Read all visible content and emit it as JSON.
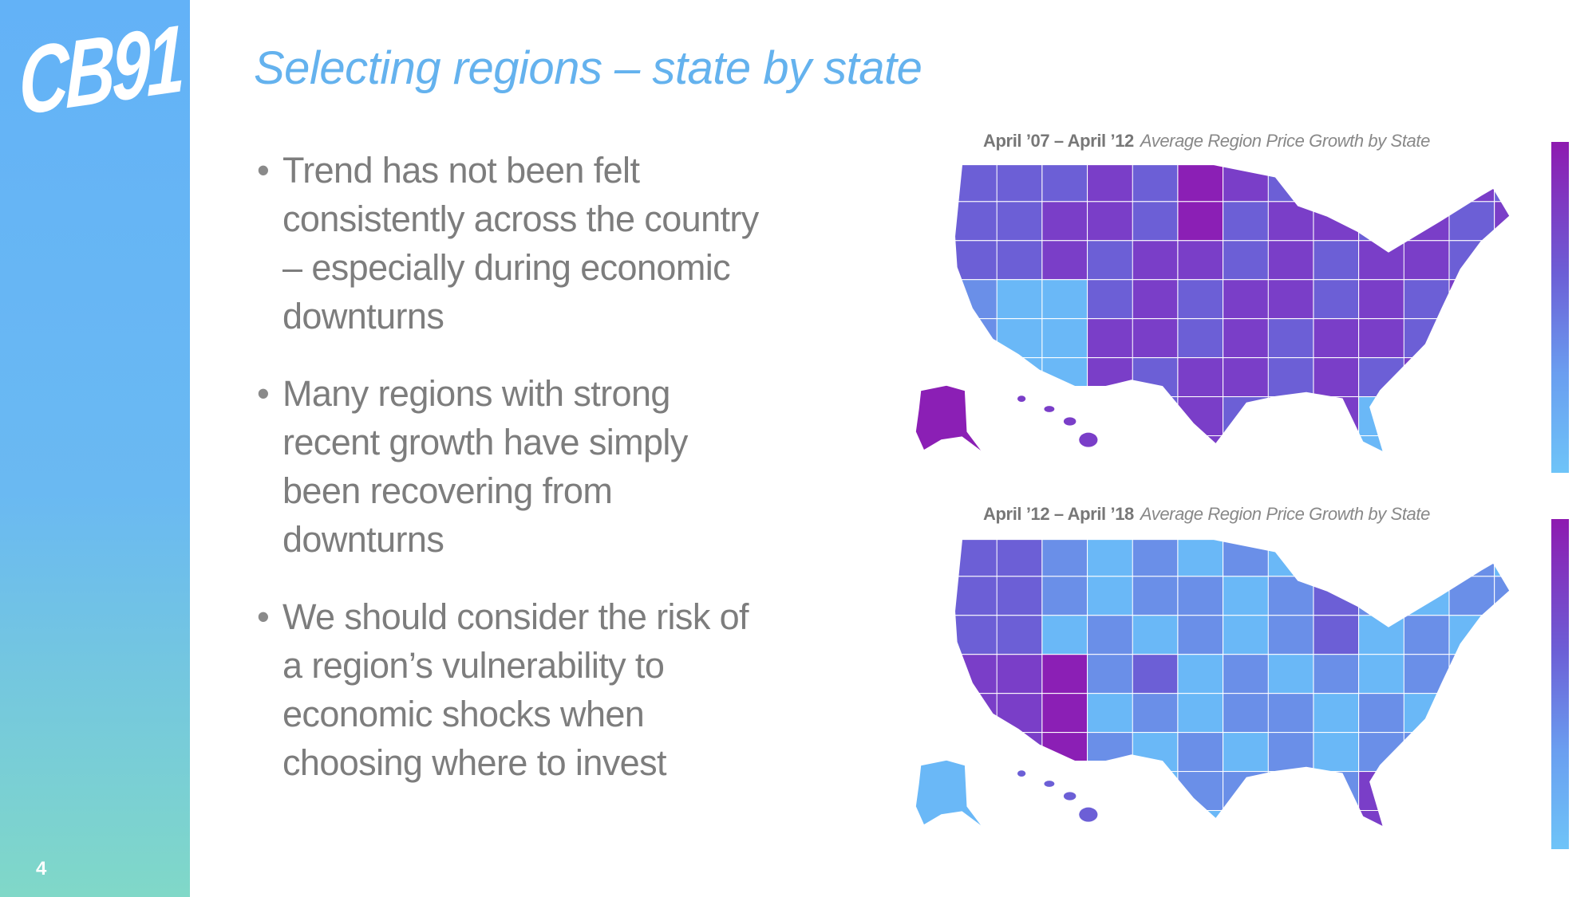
{
  "sidebar": {
    "logo": "CB91",
    "page_number": "4"
  },
  "title": "Selecting regions – state by state",
  "bullets": [
    "Trend has not been felt consistently across the country – especially during economic downturns",
    "Many regions with strong recent growth have simply been recovering from downturns",
    "We should consider the risk of a region’s vulnerability to economic shocks when choosing where to invest"
  ],
  "maps": [
    {
      "period": "April ’07 – April ’12",
      "caption": "Average Region Price Growth by State"
    },
    {
      "period": "April ’12 – April ’18",
      "caption": "Average Region Price Growth by State"
    }
  ]
}
